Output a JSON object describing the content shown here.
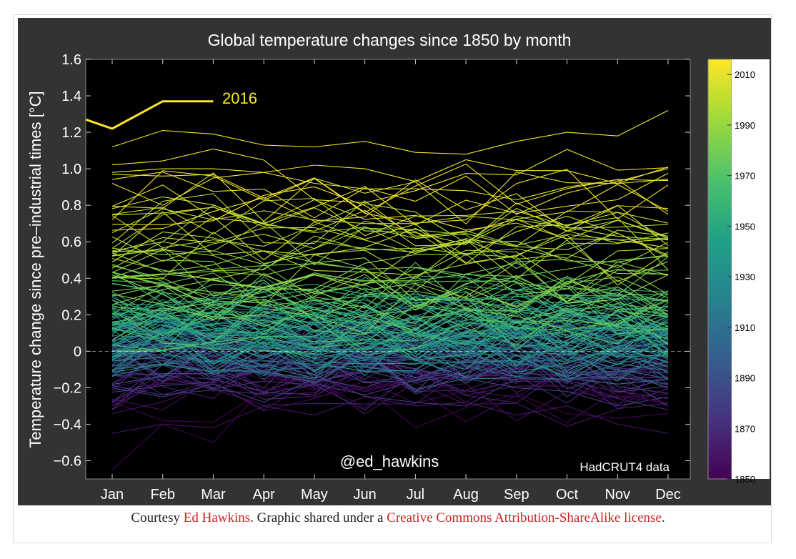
{
  "chart_data": {
    "type": "line",
    "title": "Global temperature changes since 1850 by month",
    "xlabel": "",
    "ylabel": "Temperature change since pre–industrial times [°C]",
    "categories": [
      "Jan",
      "Feb",
      "Mar",
      "Apr",
      "May",
      "Jun",
      "Jul",
      "Aug",
      "Sep",
      "Oct",
      "Nov",
      "Dec"
    ],
    "ylim": [
      -0.7,
      1.6
    ],
    "yticks": [
      -0.6,
      -0.4,
      -0.2,
      0,
      0.2,
      0.4,
      0.6,
      0.8,
      1.0,
      1.2,
      1.4,
      1.6
    ],
    "ytick_labels": [
      "−0.6",
      "−0.4",
      "−0.2",
      "0",
      "0.2",
      "0.4",
      "0.6",
      "0.8",
      "1.0",
      "1.2",
      "1.4",
      "1.6"
    ],
    "year_range": [
      1850,
      2016
    ],
    "highlight_series": {
      "name": "2016",
      "values": [
        1.22,
        1.37,
        1.37
      ]
    },
    "representative_series": [
      {
        "year": 2015,
        "values": [
          1.12,
          1.21,
          1.19,
          1.13,
          1.12,
          1.15,
          1.09,
          1.08,
          1.15,
          1.2,
          1.18,
          1.32
        ]
      },
      {
        "year": 2014,
        "values": [
          0.92,
          0.8,
          0.95,
          0.98,
          1.02,
          1.0,
          0.93,
          1.05,
          0.99,
          0.99,
          0.92,
          1.01
        ]
      },
      {
        "year": 2010,
        "values": [
          0.98,
          1.0,
          1.0,
          0.98,
          0.92,
          0.89,
          0.89,
          0.88,
          0.83,
          0.9,
          0.94,
          0.75
        ]
      },
      {
        "year": 2000,
        "values": [
          0.65,
          0.78,
          0.72,
          0.77,
          0.72,
          0.7,
          0.7,
          0.74,
          0.72,
          0.68,
          0.63,
          0.61
        ]
      },
      {
        "year": 1990,
        "values": [
          0.55,
          0.6,
          0.8,
          0.7,
          0.65,
          0.68,
          0.62,
          0.66,
          0.58,
          0.64,
          0.61,
          0.62
        ]
      },
      {
        "year": 1980,
        "values": [
          0.4,
          0.42,
          0.45,
          0.47,
          0.48,
          0.45,
          0.46,
          0.42,
          0.41,
          0.45,
          0.5,
          0.52
        ]
      },
      {
        "year": 1960,
        "values": [
          0.28,
          0.2,
          0.25,
          0.3,
          0.34,
          0.3,
          0.31,
          0.28,
          0.3,
          0.31,
          0.24,
          0.33
        ]
      },
      {
        "year": 1940,
        "values": [
          0.2,
          0.25,
          0.28,
          0.22,
          0.18,
          0.22,
          0.3,
          0.28,
          0.32,
          0.2,
          0.18,
          0.2
        ]
      },
      {
        "year": 1920,
        "values": [
          0.0,
          0.08,
          0.02,
          0.05,
          0.04,
          0.06,
          0.03,
          0.08,
          0.1,
          0.05,
          0.02,
          0.0
        ]
      },
      {
        "year": 1900,
        "values": [
          -0.1,
          -0.05,
          -0.12,
          -0.08,
          -0.05,
          0.0,
          -0.04,
          -0.06,
          -0.08,
          -0.02,
          -0.1,
          -0.15
        ]
      },
      {
        "year": 1880,
        "values": [
          -0.2,
          -0.25,
          -0.18,
          -0.28,
          -0.15,
          -0.2,
          -0.1,
          -0.15,
          -0.2,
          -0.22,
          -0.3,
          -0.25
        ]
      },
      {
        "year": 1860,
        "values": [
          -0.45,
          -0.4,
          -0.42,
          -0.3,
          -0.35,
          -0.25,
          -0.3,
          -0.28,
          -0.35,
          -0.3,
          -0.4,
          -0.45
        ]
      },
      {
        "year": 1850,
        "values": [
          -0.65,
          -0.4,
          -0.5,
          -0.2,
          -0.25,
          -0.2,
          -0.15,
          -0.1,
          -0.15,
          -0.2,
          -0.25,
          -0.28
        ]
      }
    ],
    "colorbar": {
      "ticks": [
        "1850",
        "1870",
        "1890",
        "1910",
        "1930",
        "1950",
        "1970",
        "1990",
        "2010"
      ],
      "colors": [
        "#440154",
        "#46327e",
        "#365c8d",
        "#277f8e",
        "#1fa187",
        "#4ac16d",
        "#a0da39",
        "#fde725"
      ]
    },
    "grid": false,
    "background": "#000000",
    "highlight_color": "#fde725"
  },
  "annotations": {
    "highlight_label": "2016",
    "author_handle": "@ed_hawkins",
    "data_source": "HadCRUT4 data"
  },
  "caption": {
    "prefix": "Courtesy ",
    "author_link": "Ed Hawkins",
    "middle": ". Graphic shared under a ",
    "license_link": "Creative Commons Attribution-ShareAlike license",
    "suffix": "."
  }
}
